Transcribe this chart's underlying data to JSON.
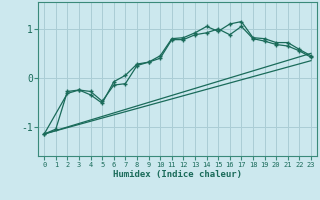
{
  "xlabel": "Humidex (Indice chaleur)",
  "bg_color": "#cce8ee",
  "grid_color": "#aacdd5",
  "line_color": "#1a6b5a",
  "spine_color": "#3a8a7a",
  "xlim": [
    -0.5,
    23.5
  ],
  "ylim": [
    -1.6,
    1.55
  ],
  "yticks": [
    -1,
    0,
    1
  ],
  "xticks": [
    0,
    1,
    2,
    3,
    4,
    5,
    6,
    7,
    8,
    9,
    10,
    11,
    12,
    13,
    14,
    15,
    16,
    17,
    18,
    19,
    20,
    21,
    22,
    23
  ],
  "line1_x": [
    0,
    1,
    2,
    3,
    4,
    5,
    6,
    7,
    8,
    9,
    10,
    11,
    12,
    13,
    14,
    15,
    16,
    17,
    18,
    19,
    20,
    21,
    22,
    23
  ],
  "line1_y": [
    -1.15,
    -1.05,
    -0.28,
    -0.25,
    -0.28,
    -0.48,
    -0.15,
    -0.12,
    0.25,
    0.32,
    0.45,
    0.8,
    0.82,
    0.92,
    1.05,
    0.95,
    1.1,
    1.15,
    0.82,
    0.8,
    0.72,
    0.72,
    0.58,
    0.45
  ],
  "line2_x": [
    0,
    2,
    3,
    4,
    5,
    6,
    7,
    8,
    9,
    10,
    11,
    12,
    13,
    14,
    15,
    16,
    17,
    18,
    19,
    20,
    21,
    22,
    23
  ],
  "line2_y": [
    -1.15,
    -0.32,
    -0.25,
    -0.35,
    -0.52,
    -0.08,
    0.05,
    0.28,
    0.32,
    0.4,
    0.78,
    0.78,
    0.88,
    0.92,
    1.0,
    0.88,
    1.05,
    0.8,
    0.75,
    0.68,
    0.65,
    0.55,
    0.42
  ],
  "line3_x": [
    0,
    23
  ],
  "line3_y": [
    -1.15,
    0.5
  ],
  "line4_x": [
    0,
    23
  ],
  "line4_y": [
    -1.15,
    0.35
  ]
}
